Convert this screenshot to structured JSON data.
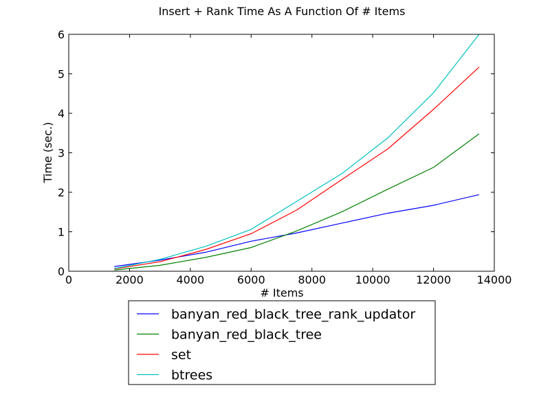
{
  "chart_data": {
    "type": "line",
    "title": "Insert + Rank Time As A Function Of # Items",
    "xlabel": "# Items",
    "ylabel": "Time (sec.)",
    "xlim": [
      0,
      14000
    ],
    "ylim": [
      0,
      6
    ],
    "xticks": [
      0,
      2000,
      4000,
      6000,
      8000,
      10000,
      12000,
      14000
    ],
    "yticks": [
      0,
      1,
      2,
      3,
      4,
      5,
      6
    ],
    "grid": false,
    "legend_position": "below plot, centered",
    "x": [
      1500,
      3000,
      4500,
      6000,
      7500,
      9000,
      10500,
      12000,
      13500
    ],
    "series": [
      {
        "name": "banyan_red_black_tree_rank_updator",
        "color": "#0000ff",
        "values": [
          0.12,
          0.28,
          0.48,
          0.76,
          0.97,
          1.22,
          1.47,
          1.67,
          1.94
        ]
      },
      {
        "name": "banyan_red_black_tree",
        "color": "#008000",
        "values": [
          0.03,
          0.15,
          0.35,
          0.6,
          1.02,
          1.51,
          2.08,
          2.63,
          3.48
        ]
      },
      {
        "name": "set",
        "color": "#ff0000",
        "values": [
          0.06,
          0.24,
          0.55,
          0.95,
          1.55,
          2.33,
          3.1,
          4.1,
          5.17
        ]
      },
      {
        "name": "btrees",
        "color": "#00bfbf",
        "values": [
          0.07,
          0.3,
          0.63,
          1.06,
          1.77,
          2.48,
          3.38,
          4.52,
          6.0
        ]
      }
    ]
  }
}
